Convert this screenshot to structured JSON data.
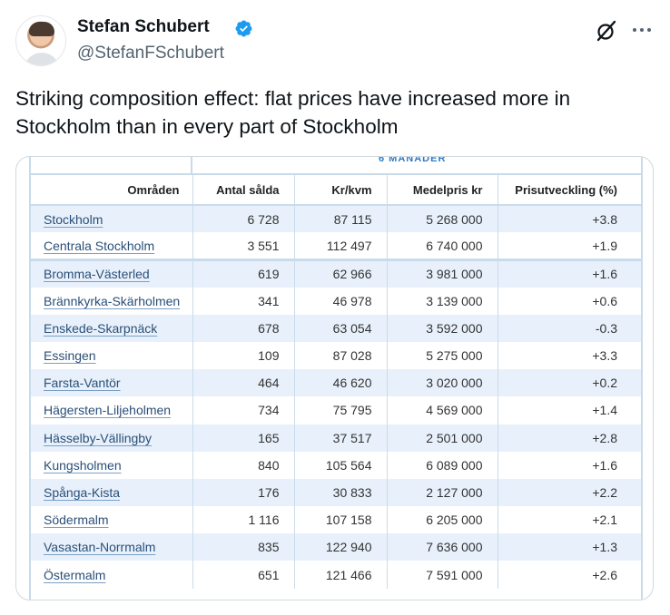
{
  "author": {
    "display_name": "Stefan Schubert",
    "handle": "@StefanFSchubert",
    "verified": true,
    "verified_color": "#1d9bf0"
  },
  "icons": [
    "verified-badge-icon",
    "grok-icon",
    "more-icon"
  ],
  "tweet": {
    "text": "Striking composition effect: flat prices have increased more in Stockholm than in every part of Stockholm"
  },
  "table": {
    "period_label": "6 MÅNADER",
    "accent_color": "#2e7bc4",
    "columns": [
      "Områden",
      "Antal sålda",
      "Kr/kvm",
      "Medelpris kr",
      "Prisutveckling (%)"
    ],
    "rows": [
      {
        "area": "Stockholm",
        "sold": "6 728",
        "kr_kvm": "87 115",
        "medelpris": "5 268 000",
        "change": "+3.8"
      },
      {
        "area": "Centrala Stockholm",
        "sold": "3 551",
        "kr_kvm": "112 497",
        "medelpris": "6 740 000",
        "change": "+1.9"
      },
      {
        "area": "Bromma-Västerled",
        "sold": "619",
        "kr_kvm": "62 966",
        "medelpris": "3 981 000",
        "change": "+1.6"
      },
      {
        "area": "Brännkyrka-Skärholmen",
        "sold": "341",
        "kr_kvm": "46 978",
        "medelpris": "3 139 000",
        "change": "+0.6"
      },
      {
        "area": "Enskede-Skarpnäck",
        "sold": "678",
        "kr_kvm": "63 054",
        "medelpris": "3 592 000",
        "change": "-0.3"
      },
      {
        "area": "Essingen",
        "sold": "109",
        "kr_kvm": "87 028",
        "medelpris": "5 275 000",
        "change": "+3.3"
      },
      {
        "area": "Farsta-Vantör",
        "sold": "464",
        "kr_kvm": "46 620",
        "medelpris": "3 020 000",
        "change": "+0.2"
      },
      {
        "area": "Hägersten-Liljeholmen",
        "sold": "734",
        "kr_kvm": "75 795",
        "medelpris": "4 569 000",
        "change": "+1.4"
      },
      {
        "area": "Hässelby-Vällingby",
        "sold": "165",
        "kr_kvm": "37 517",
        "medelpris": "2 501 000",
        "change": "+2.8"
      },
      {
        "area": "Kungsholmen",
        "sold": "840",
        "kr_kvm": "105 564",
        "medelpris": "6 089 000",
        "change": "+1.6"
      },
      {
        "area": "Spånga-Kista",
        "sold": "176",
        "kr_kvm": "30 833",
        "medelpris": "2 127 000",
        "change": "+2.2"
      },
      {
        "area": "Södermalm",
        "sold": "1 116",
        "kr_kvm": "107 158",
        "medelpris": "6 205 000",
        "change": "+2.1"
      },
      {
        "area": "Vasastan-Norrmalm",
        "sold": "835",
        "kr_kvm": "122 940",
        "medelpris": "7 636 000",
        "change": "+1.3"
      },
      {
        "area": "Östermalm",
        "sold": "651",
        "kr_kvm": "121 466",
        "medelpris": "7 591 000",
        "change": "+2.6"
      }
    ]
  }
}
